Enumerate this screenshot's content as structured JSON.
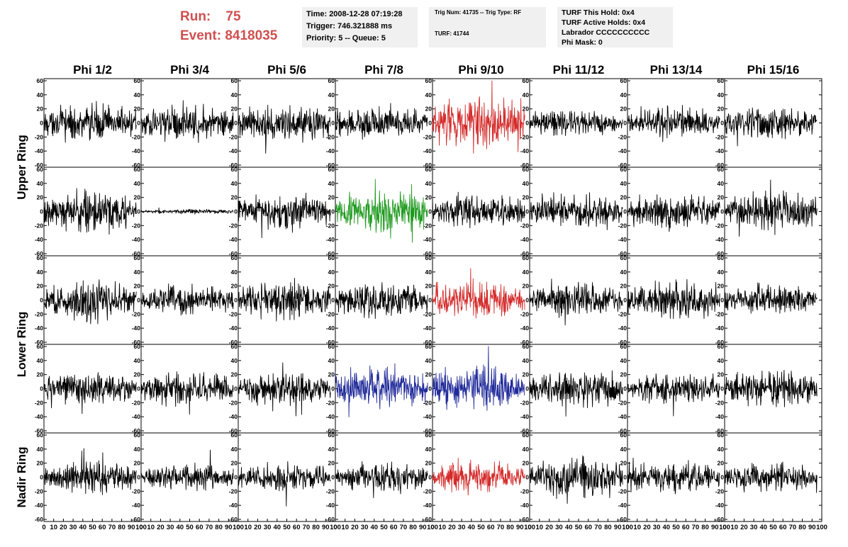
{
  "run": {
    "run_label": "Run:",
    "run_value": "75",
    "event_label": "Event:",
    "event_value": "8418035"
  },
  "info_time": {
    "time": "Time: 2008-12-28 07:19:28",
    "trigger": "Trigger: 746.321888 ms",
    "priority": "Priority: 5 -- Queue: 5"
  },
  "info_trig": {
    "trig": "Trig Num: 41735 -- Trig Type: RF",
    "turf": "TURF: 41744"
  },
  "info_turf": {
    "this_hold": "TURF This Hold: 0x4",
    "active_holds": "TURF Active Holds: 0x4",
    "labrador": "Labrador CCCCCCCCCC",
    "phi_mask": "Phi Mask: 0"
  },
  "chart_data": {
    "type": "line",
    "columns": [
      "Phi 1/2",
      "Phi 3/4",
      "Phi 5/6",
      "Phi 7/8",
      "Phi 9/10",
      "Phi 11/12",
      "Phi 13/14",
      "Phi 15/16"
    ],
    "ring_labels": [
      {
        "label": "Upper Ring",
        "rows": [
          0,
          1
        ]
      },
      {
        "label": "Lower Ring",
        "rows": [
          2,
          3
        ]
      },
      {
        "label": "Nadir Ring",
        "rows": [
          4
        ]
      }
    ],
    "xlim": [
      0,
      100
    ],
    "ylim": [
      -60,
      60
    ],
    "x_ticks": [
      0,
      10,
      20,
      30,
      40,
      50,
      60,
      70,
      80,
      90,
      100
    ],
    "y_ticks": [
      -60,
      -40,
      -20,
      0,
      20,
      40,
      60
    ],
    "waveform_x_range": [
      0,
      95
    ],
    "colors": {
      "default": "#000000",
      "red": "#d42a2a",
      "green": "#1f9a1f",
      "blue": "#202a9a",
      "text": "#000000"
    },
    "panels": [
      [
        {
          "amp": 15,
          "color": "default"
        },
        {
          "amp": 14,
          "color": "default"
        },
        {
          "amp": 15,
          "color": "default"
        },
        {
          "amp": 14,
          "color": "default"
        },
        {
          "amp": 22,
          "color": "red"
        },
        {
          "amp": 11,
          "color": "default"
        },
        {
          "amp": 13,
          "color": "default"
        },
        {
          "amp": 14,
          "color": "default"
        }
      ],
      [
        {
          "amp": 16,
          "color": "default"
        },
        {
          "amp": 2,
          "color": "default"
        },
        {
          "amp": 15,
          "color": "default"
        },
        {
          "amp": 18,
          "color": "green"
        },
        {
          "amp": 14,
          "color": "default"
        },
        {
          "amp": 14,
          "color": "default"
        },
        {
          "amp": 14,
          "color": "default"
        },
        {
          "amp": 16,
          "color": "default"
        }
      ],
      [
        {
          "amp": 17,
          "color": "default"
        },
        {
          "amp": 12,
          "color": "default"
        },
        {
          "amp": 15,
          "color": "default"
        },
        {
          "amp": 14,
          "color": "default"
        },
        {
          "amp": 15,
          "color": "red"
        },
        {
          "amp": 14,
          "color": "default"
        },
        {
          "amp": 16,
          "color": "default"
        },
        {
          "amp": 13,
          "color": "default"
        }
      ],
      [
        {
          "amp": 13,
          "color": "default"
        },
        {
          "amp": 14,
          "color": "default"
        },
        {
          "amp": 14,
          "color": "default"
        },
        {
          "amp": 17,
          "color": "blue"
        },
        {
          "amp": 17,
          "color": "blue"
        },
        {
          "amp": 14,
          "color": "default"
        },
        {
          "amp": 12,
          "color": "default"
        },
        {
          "amp": 15,
          "color": "default"
        }
      ],
      [
        {
          "amp": 14,
          "color": "default"
        },
        {
          "amp": 11,
          "color": "default"
        },
        {
          "amp": 11,
          "color": "default"
        },
        {
          "amp": 12,
          "color": "default"
        },
        {
          "amp": 12,
          "color": "red"
        },
        {
          "amp": 17,
          "color": "default"
        },
        {
          "amp": 13,
          "color": "default"
        },
        {
          "amp": 12,
          "color": "default"
        }
      ]
    ]
  }
}
